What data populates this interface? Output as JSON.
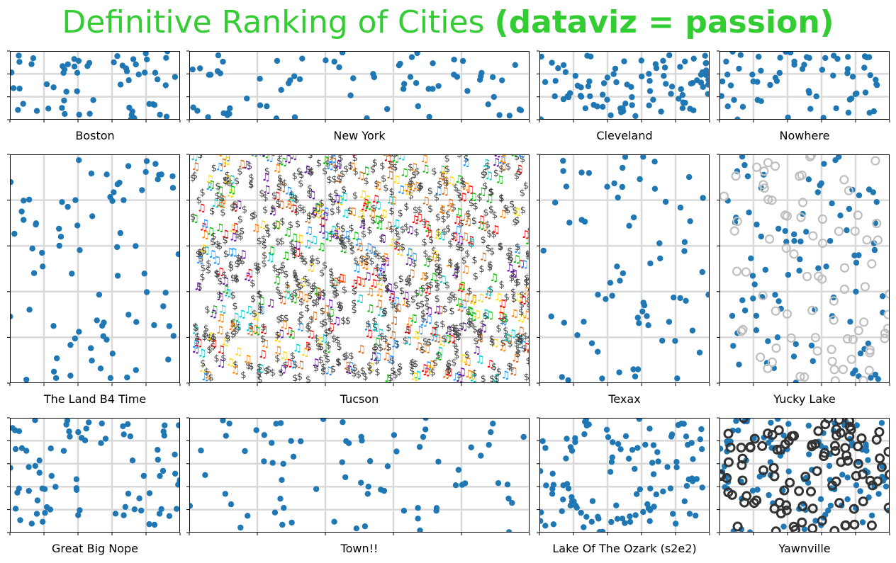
{
  "title": {
    "main": "Definitive Ranking of Cities",
    "bold": "(dataviz = passion)",
    "color": "#33cc33"
  },
  "colors": {
    "dots": "#1f77b4",
    "grid": "#d9d9d9",
    "ring_light": "#bfbfbf",
    "ring_dark": "#333333",
    "dollar": "#444444"
  },
  "chart_data": [
    {
      "name": "Boston",
      "type": "scatter",
      "marker": "dot",
      "points": 60,
      "xlim": [
        0,
        1
      ],
      "ylim": [
        0,
        1
      ],
      "grid": true
    },
    {
      "name": "New York",
      "type": "scatter",
      "marker": "dot",
      "points": 70,
      "xlim": [
        0,
        1
      ],
      "ylim": [
        0,
        1
      ],
      "grid": true
    },
    {
      "name": "Cleveland",
      "type": "scatter",
      "marker": "dot",
      "points": 90,
      "xlim": [
        0,
        1
      ],
      "ylim": [
        0,
        1
      ],
      "grid": true
    },
    {
      "name": "Nowhere",
      "type": "scatter",
      "marker": "dot",
      "points": 65,
      "xlim": [
        0,
        1
      ],
      "ylim": [
        0,
        1
      ],
      "grid": true
    },
    {
      "name": "The Land B4 Time",
      "type": "scatter",
      "marker": "dot",
      "points": 80,
      "xlim": [
        0,
        1
      ],
      "ylim": [
        0,
        1
      ],
      "grid": true
    },
    {
      "name": "Tucson",
      "type": "scatter",
      "marker": "text",
      "symbols": [
        "$",
        "♫"
      ],
      "points": 1100,
      "xlim": [
        0,
        1
      ],
      "ylim": [
        0,
        1
      ],
      "grid": true
    },
    {
      "name": "Texax",
      "type": "scatter",
      "marker": "dot",
      "points": 70,
      "xlim": [
        0,
        1
      ],
      "ylim": [
        0,
        1
      ],
      "grid": true
    },
    {
      "name": "Yucky Lake",
      "type": "scatter",
      "marker": "dot+ring",
      "points": 90,
      "ring_points": 80,
      "xlim": [
        0,
        1
      ],
      "ylim": [
        0,
        1
      ],
      "grid": true
    },
    {
      "name": "Great Big Nope",
      "type": "scatter",
      "marker": "dot",
      "points": 80,
      "xlim": [
        0,
        1
      ],
      "ylim": [
        0,
        1
      ],
      "grid": true
    },
    {
      "name": "Town!!",
      "type": "scatter",
      "marker": "dot",
      "points": 75,
      "xlim": [
        0,
        1
      ],
      "ylim": [
        0,
        1
      ],
      "grid": true
    },
    {
      "name": "Lake Of The Ozark (s2e2)",
      "type": "scatter",
      "marker": "dot",
      "points": 110,
      "xlim": [
        0,
        1
      ],
      "ylim": [
        0,
        1
      ],
      "grid": true
    },
    {
      "name": "Yawnville",
      "type": "scatter",
      "marker": "dot+ring",
      "points": 110,
      "ring_points": 100,
      "xlim": [
        0,
        1
      ],
      "ylim": [
        0,
        1
      ],
      "grid": true
    }
  ]
}
